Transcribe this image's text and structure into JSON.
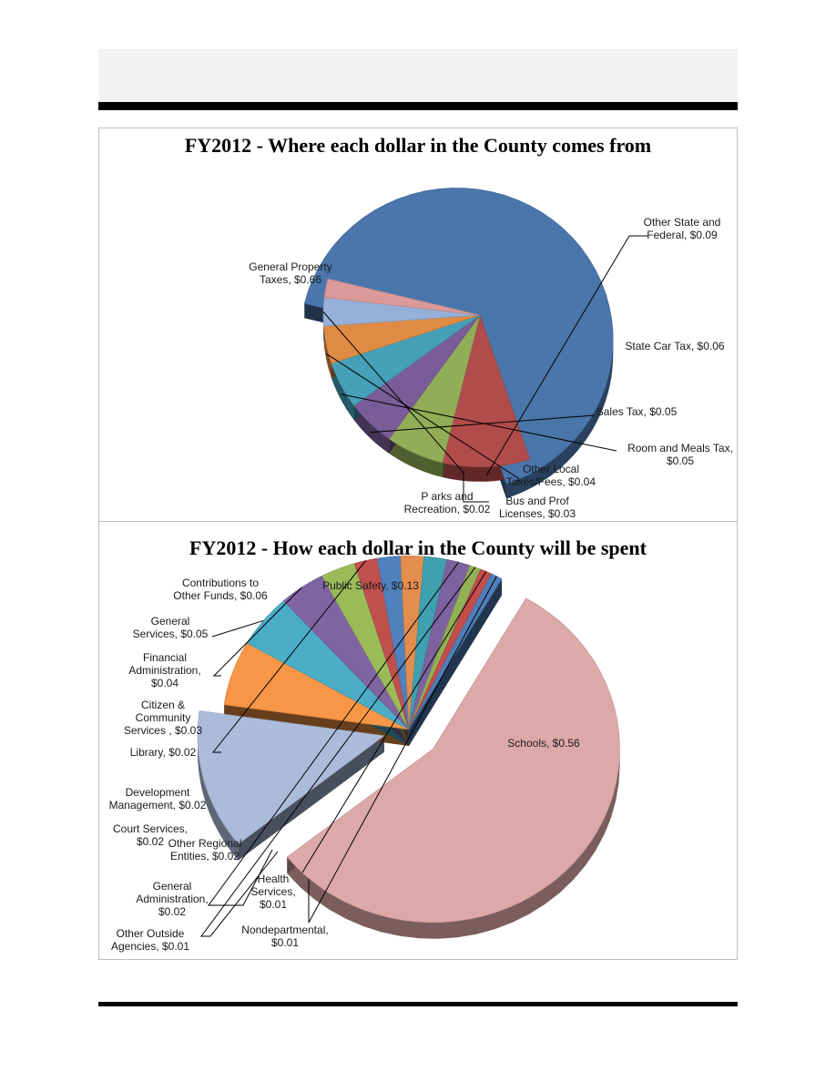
{
  "chart_data": [
    {
      "type": "pie",
      "title": "FY2012 - Where each dollar in the County comes from",
      "slices": [
        {
          "label": [
            "General Property",
            "Taxes, $0.66"
          ],
          "value": 0.66,
          "color": "#4a76ab"
        },
        {
          "label": [
            "Other State and",
            "Federal, $0.09"
          ],
          "value": 0.09,
          "color": "#b04c4a"
        },
        {
          "label": [
            "State Car Tax, $0.06"
          ],
          "value": 0.06,
          "color": "#92ad58"
        },
        {
          "label": [
            "Sales Tax, $0.05"
          ],
          "value": 0.05,
          "color": "#7a5c99"
        },
        {
          "label": [
            "Room and Meals Tax,",
            "$0.05"
          ],
          "value": 0.05,
          "color": "#45a0b8"
        },
        {
          "label": [
            "Other Local",
            "Taxes/Fees, $0.04"
          ],
          "value": 0.04,
          "color": "#e08b44"
        },
        {
          "label": [
            "Bus and Prof",
            "Licenses, $0.03"
          ],
          "value": 0.03,
          "color": "#96b0d8"
        },
        {
          "label": [
            "P arks and",
            "Recreation, $0.02"
          ],
          "value": 0.02,
          "color": "#d99a99"
        }
      ]
    },
    {
      "type": "pie",
      "title": "FY2012 - How each dollar in the County will be spent",
      "slices": [
        {
          "label": [
            "Schools, $0.56"
          ],
          "value": 0.56,
          "color": "#dda9a8"
        },
        {
          "label": [
            "Public Safety, $0.13"
          ],
          "value": 0.13,
          "color": "#abbcda"
        },
        {
          "label": [
            "Contributions to",
            "Other Funds, $0.06"
          ],
          "value": 0.06,
          "color": "#f79646"
        },
        {
          "label": [
            "General",
            "Services, $0.05"
          ],
          "value": 0.05,
          "color": "#4bacc6"
        },
        {
          "label": [
            "Financial",
            "Administration,",
            "$0.04"
          ],
          "value": 0.04,
          "color": "#8064a2"
        },
        {
          "label": [
            "Citizen &",
            "Community",
            "Services , $0.03"
          ],
          "value": 0.03,
          "color": "#9bbb59"
        },
        {
          "label": [
            "Library, $0.02"
          ],
          "value": 0.02,
          "color": "#c0504d"
        },
        {
          "label": [
            "Development",
            "Management, $0.02"
          ],
          "value": 0.02,
          "color": "#4f81bd"
        },
        {
          "label": [
            "Court Services,",
            "$0.02"
          ],
          "value": 0.02,
          "color": "#e38d4e"
        },
        {
          "label": [
            "Other Regional",
            "Entities, $0.02"
          ],
          "value": 0.02,
          "color": "#3fa0b0"
        },
        {
          "label": [
            "General",
            "Administration,",
            "$0.02"
          ],
          "value": 0.02,
          "color": "#7c63a0"
        },
        {
          "label": [
            "Other Outside",
            "Agencies, $0.01"
          ],
          "value": 0.01,
          "color": "#92b054"
        },
        {
          "label": [
            "Health",
            "Services,",
            "$0.01"
          ],
          "value": 0.01,
          "color": "#c24d4a"
        },
        {
          "label": [
            "Nondepartmental,",
            "$0.01"
          ],
          "value": 0.01,
          "color": "#4f7eb9"
        }
      ]
    }
  ]
}
